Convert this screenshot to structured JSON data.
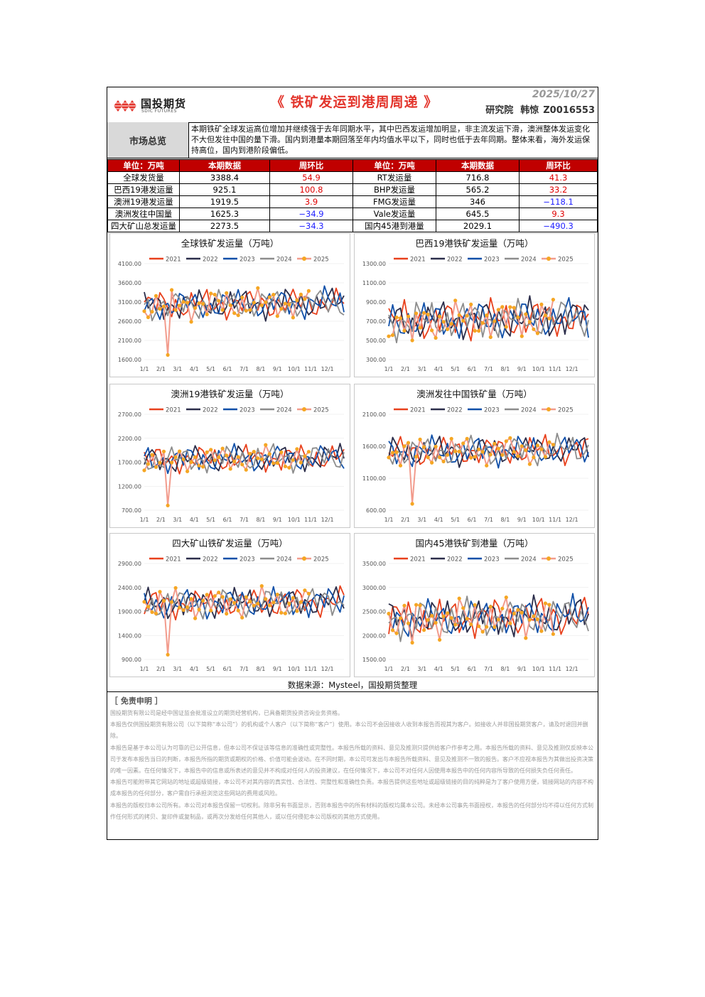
{
  "header": {
    "logo_cn": "国投期货",
    "logo_en": "SDIC FUTURES",
    "title": "《 铁矿发运到港周周递 》",
    "date": "2025/10/27",
    "dept": "研究院",
    "analyst": "韩惊",
    "license": "Z0016553"
  },
  "overview": {
    "label": "市场总览",
    "text": "本期铁矿全球发运高位增加并继续强于去年同期水平，其中巴西发运增加明显，非主流发运下滑，澳洲整体发运变化不大但发往中国的量下滑。国内到港量本期回落至年内均值水平以下，同时也低于去年同期。整体来看，海外发运保持高位，国内到港阶段偏低。"
  },
  "table": {
    "headers": [
      "单位：万吨",
      "本期数据",
      "周环比",
      "单位：万吨",
      "本期数据",
      "周环比"
    ],
    "rows": [
      {
        "l_name": "全球发货量",
        "l_val": "3388.4",
        "l_chg": "54.9",
        "l_sign": "pos",
        "r_name": "RT发运量",
        "r_val": "716.8",
        "r_chg": "41.3",
        "r_sign": "pos"
      },
      {
        "l_name": "巴西19港发运量",
        "l_val": "925.1",
        "l_chg": "100.8",
        "l_sign": "pos",
        "r_name": "BHP发运量",
        "r_val": "565.2",
        "r_chg": "33.2",
        "r_sign": "pos"
      },
      {
        "l_name": "澳洲19港发运量",
        "l_val": "1919.5",
        "l_chg": "3.9",
        "l_sign": "pos",
        "r_name": "FMG发运量",
        "r_val": "346",
        "r_chg": "−118.1",
        "r_sign": "neg"
      },
      {
        "l_name": "澳洲发往中国量",
        "l_val": "1625.3",
        "l_chg": "−34.9",
        "l_sign": "neg",
        "r_name": "Vale发运量",
        "r_val": "645.5",
        "r_chg": "9.3",
        "r_sign": "pos"
      },
      {
        "l_name": "四大矿山总发运量",
        "l_val": "2273.5",
        "l_chg": "−34.3",
        "l_sign": "neg",
        "r_name": "国内45港到港量",
        "r_val": "2029.1",
        "r_chg": "−490.3",
        "r_sign": "neg"
      }
    ]
  },
  "colors": {
    "2021": "#e8401c",
    "2022": "#2b2d4a",
    "2023": "#0f4fa8",
    "2024": "#8c8c8c",
    "2025": "#f29b8c",
    "2025_marker": "#f5a623"
  },
  "chart_data": [
    {
      "type": "line",
      "title": "全球铁矿发运量（万吨）",
      "ylim": [
        1600,
        4100
      ],
      "yticks": [
        "4100.00",
        "3600.00",
        "3100.00",
        "2600.00",
        "2100.00",
        "1600.00"
      ],
      "x_ticks": [
        "1/1",
        "2/1",
        "3/1",
        "4/1",
        "5/1",
        "6/1",
        "7/1",
        "8/1",
        "9/1",
        "10/1",
        "11/1",
        "12/1"
      ],
      "legend": [
        "2021",
        "2022",
        "2023",
        "2024",
        "2025"
      ],
      "base": 3050,
      "amp": 250,
      "last2025": 3388.4,
      "dip": 1720
    },
    {
      "type": "line",
      "title": "巴西19港铁矿发运量（万吨）",
      "ylim": [
        300,
        1300
      ],
      "yticks": [
        "1300.00",
        "1100.00",
        "900.00",
        "700.00",
        "500.00",
        "300.00"
      ],
      "x_ticks": [
        "1/1",
        "2/1",
        "3/1",
        "4/1",
        "5/1",
        "6/1",
        "7/1",
        "8/1",
        "9/1",
        "10/1",
        "11/1",
        "12/1"
      ],
      "legend": [
        "2021",
        "2022",
        "2023",
        "2024",
        "2025"
      ],
      "base": 720,
      "amp": 130,
      "last2025": 925.1,
      "dip": 500
    },
    {
      "type": "line",
      "title": "澳洲19港铁矿发运量（万吨）",
      "ylim": [
        700,
        2700
      ],
      "yticks": [
        "2700.00",
        "2200.00",
        "1700.00",
        "1200.00",
        "700.00"
      ],
      "x_ticks": [
        "1/1",
        "2/1",
        "3/1",
        "4/1",
        "5/1",
        "6/1",
        "7/1",
        "8/1",
        "9/1",
        "10/1",
        "11/1",
        "12/1"
      ],
      "legend": [
        "2021",
        "2022",
        "2023",
        "2024",
        "2025"
      ],
      "base": 1780,
      "amp": 180,
      "last2025": 1919.5,
      "dip": 800
    },
    {
      "type": "line",
      "title": "澳洲发往中国铁矿量（万吨）",
      "ylim": [
        600,
        2100
      ],
      "yticks": [
        "2100.00",
        "1600.00",
        "1100.00",
        "600.00"
      ],
      "x_ticks": [
        "1/1",
        "2/1",
        "3/1",
        "4/1",
        "5/1",
        "6/1",
        "7/1",
        "8/1",
        "9/1",
        "10/1",
        "11/1",
        "12/1"
      ],
      "legend": [
        "2021",
        "2022",
        "2023",
        "2024",
        "2025"
      ],
      "base": 1530,
      "amp": 150,
      "last2025": 1625.3,
      "dip": 700
    },
    {
      "type": "line",
      "title": "四大矿山铁矿发运量（万吨）",
      "ylim": [
        900,
        2900
      ],
      "yticks": [
        "2900.00",
        "2400.00",
        "1900.00",
        "1400.00",
        "900.00"
      ],
      "x_ticks": [
        "1/1",
        "2/1",
        "3/1",
        "4/1",
        "5/1",
        "6/1",
        "7/1",
        "8/1",
        "9/1",
        "10/1",
        "11/1",
        "12/1"
      ],
      "legend": [
        "2021",
        "2022",
        "2023",
        "2024",
        "2025"
      ],
      "base": 2080,
      "amp": 200,
      "last2025": 2273.5,
      "dip": 1000
    },
    {
      "type": "line",
      "title": "国内45港铁矿到港量（万吨）",
      "ylim": [
        1500,
        3500
      ],
      "yticks": [
        "3500.00",
        "3000.00",
        "2500.00",
        "2000.00",
        "1500.00"
      ],
      "x_ticks": [
        "1/1",
        "2/1",
        "3/1",
        "4/1",
        "5/1",
        "6/1",
        "7/1",
        "8/1",
        "9/1",
        "10/1",
        "11/1",
        "12/1"
      ],
      "legend": [
        "2021",
        "2022",
        "2023",
        "2024",
        "2025"
      ],
      "base": 2380,
      "amp": 260,
      "last2025": 2029.1,
      "dip": 1850
    }
  ],
  "source": "数据来源：Mysteel，国投期货整理",
  "disclaimer": {
    "title": "［ 免责申明 ］",
    "paragraphs": [
      "国投期货有限公司是经中国证监会批准设立的期货经营机构，已具备期货投资咨询业务资格。",
      "本报告仅供国投期货有限公司（以下简称“本公司”）的机构或个人客户（以下简称“客户”）使用。本公司不会因接收人收到本报告而视其为客户。如接收人并非国投期货客户，请及时退回并删除。",
      "本报告是基于本公司认为可靠的已公开信息，但本公司不保证该等信息的准确性或完整性。本报告所载的资料、意见及推测只提供给客户作参考之用。本报告所载的资料、意见及推测仅反映本公司于发布本报告当日的判断，本报告所指的期货或期权的价格、价值可能会波动。在不同时期，本公司可发出与本报告所载资料、意见及推测不一致的报告。客户不应视本报告为其做出投资决策的唯一因素。在任何情况下，本报告中的信息或所表述的意见并不构成对任何人的投资建议，在任何情况下，本公司不对任何人因使用本报告中的任何内容所导致的任何损失负任何责任。",
      "本报告可能附带其它网站的地址或超级链接，本公司不对其内容的真实性、合法性、完整性和准确性负责。本报告提供这些地址或超级链接的目的纯粹是为了客户使用方便，链接网站的内容不构成本报告的任何部分，客户需自行承担浏览这些网站的费用或风险。",
      "本报告的版权归本公司所有。本公司对本报告保留一切权利。除非另有书面显示，否则本报告中的所有材料的版权均属本公司。未经本公司事先书面授权，本报告的任何部分均不得以任何方式制作任何形式的拷贝、复印件或复制品，或再次分发给任何其他人，或以任何侵犯本公司版权的其他方式使用。"
    ]
  }
}
